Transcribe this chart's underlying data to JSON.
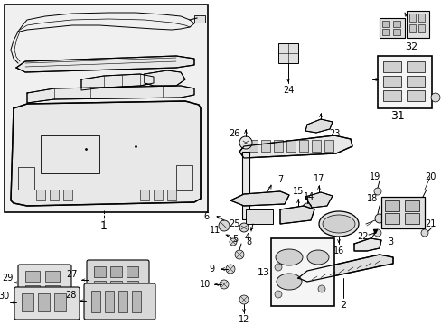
{
  "background_color": "#ffffff",
  "border_color": "#000000",
  "line_color": "#000000",
  "text_color": "#000000",
  "fig_width": 4.89,
  "fig_height": 3.6,
  "dpi": 100
}
